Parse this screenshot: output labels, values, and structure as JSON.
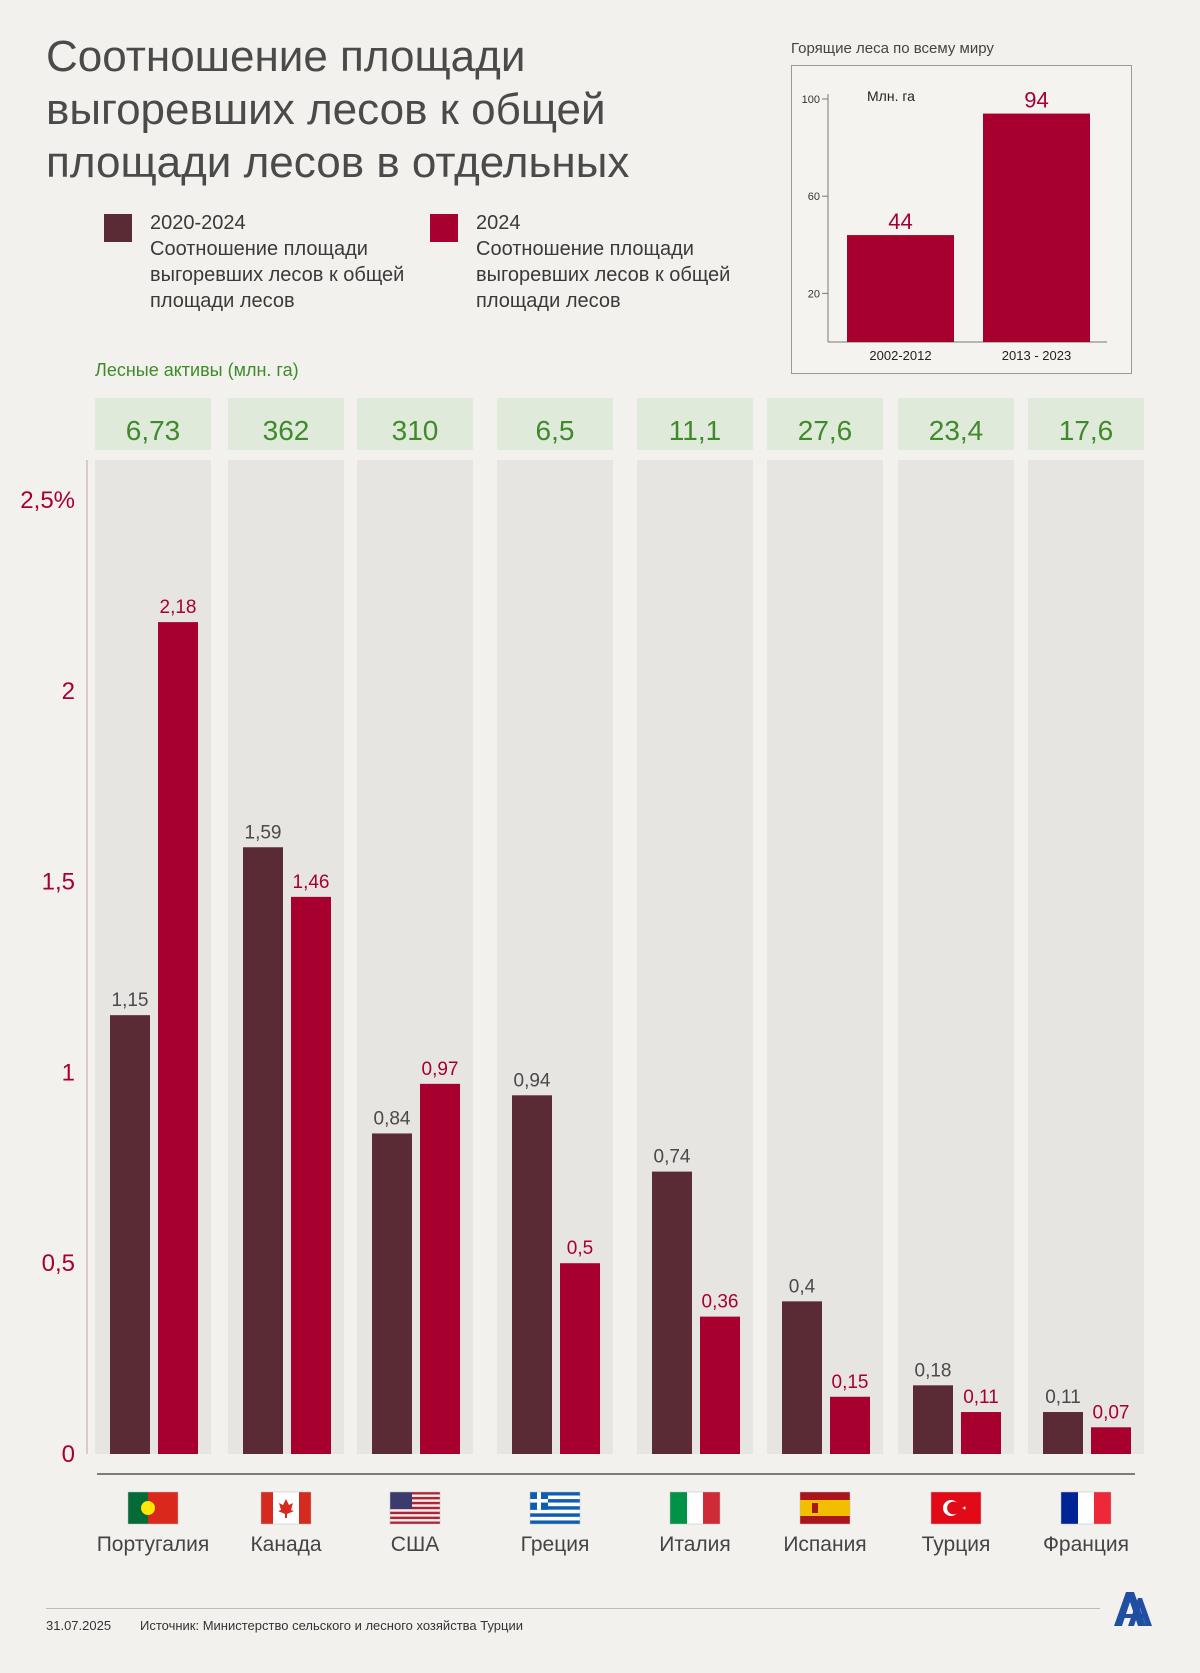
{
  "title": "Соотношение площади выгоревших лесов к общей площади лесов в отдельных",
  "legend": [
    {
      "year": "2020-2024",
      "text": "Соотношение площади выгоревших лесов к общей площади лесов",
      "color": "#5a2a35"
    },
    {
      "year": "2024",
      "text": "Соотношение площади выгоревших лесов к общей площади лесов",
      "color": "#a8002e"
    }
  ],
  "forest_assets_label": "Лесные активы (млн. га)",
  "inset": {
    "title": "Горящие леса по всему миру",
    "unit": "Млн. га"
  },
  "footer": {
    "date": "31.07.2025",
    "source": "Источник: Министерство сельского и лесного хозяйства Турции"
  },
  "colors": {
    "series_avg": "#5a2a35",
    "series_2024": "#a8002e",
    "axis_label": "#a8002e",
    "green_text": "#3f8a2a",
    "green_box": "#dfeadb",
    "column_bg": "#e6e5e2"
  },
  "chart_data": [
    {
      "type": "bar",
      "title": "Соотношение площади выгоревших лесов к общей площади лесов в отдельных",
      "categories": [
        "Португалия",
        "Канада",
        "США",
        "Греция",
        "Италия",
        "Испания",
        "Турция",
        "Франция"
      ],
      "forest_assets": [
        "6,73",
        "362",
        "310",
        "6,5",
        "11,1",
        "27,6",
        "23,4",
        "17,6"
      ],
      "series": [
        {
          "name": "2020-2024",
          "values": [
            1.15,
            1.59,
            0.84,
            0.94,
            0.74,
            0.4,
            0.18,
            0.11
          ],
          "labels": [
            "1,15",
            "1,59",
            "0,84",
            "0,94",
            "0,74",
            "0,4",
            "0,18",
            "0,11"
          ]
        },
        {
          "name": "2024",
          "values": [
            2.18,
            1.46,
            0.97,
            0.5,
            0.36,
            0.15,
            0.11,
            0.07
          ],
          "labels": [
            "2,18",
            "1,46",
            "0,97",
            "0,5",
            "0,36",
            "0,15",
            "0,11",
            "0,07"
          ]
        }
      ],
      "yticks": [
        {
          "value": 0,
          "label": "0"
        },
        {
          "value": 0.5,
          "label": "0,5"
        },
        {
          "value": 1,
          "label": "1"
        },
        {
          "value": 1.5,
          "label": "1,5"
        },
        {
          "value": 2,
          "label": "2"
        },
        {
          "value": 2.5,
          "label": "2,5%"
        }
      ],
      "ylim": [
        0,
        2.5
      ],
      "ylabel": "%",
      "xlabel": ""
    },
    {
      "type": "bar",
      "title": "Горящие леса по всему миру",
      "ylabel": "Млн. га",
      "categories": [
        "2002-2012",
        "2013 - 2023"
      ],
      "values": [
        44,
        94
      ],
      "yticks": [
        {
          "value": 20,
          "label": "20"
        },
        {
          "value": 60,
          "label": "60"
        },
        {
          "value": 100,
          "label": "100"
        }
      ],
      "ylim": [
        0,
        100
      ]
    }
  ]
}
